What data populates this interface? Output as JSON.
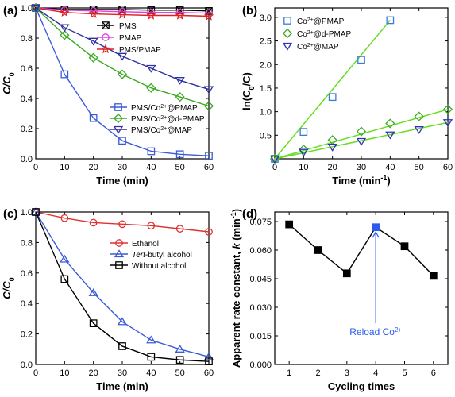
{
  "chart_data": [
    {
      "panel": "(a)",
      "type": "line",
      "xlabel": "Time (min)",
      "ylabel": "C/C0",
      "ylabel_main": "C/C",
      "ylabel_sub": "0",
      "xlim": [
        0,
        60
      ],
      "ylim": [
        0,
        1.0
      ],
      "xticks": [
        "0",
        "10",
        "20",
        "30",
        "40",
        "50",
        "60"
      ],
      "yticks": [
        "0.0",
        "0.2",
        "0.4",
        "0.6",
        "0.8",
        "1.0"
      ],
      "grid": false,
      "series": [
        {
          "name": "PMS",
          "label_parts": [
            "PMS"
          ],
          "color": "#000000",
          "marker": "xsquare",
          "x": [
            0,
            10,
            20,
            30,
            40,
            50,
            60
          ],
          "values": [
            1.0,
            0.99,
            0.99,
            0.99,
            0.985,
            0.985,
            0.98
          ]
        },
        {
          "name": "PMAP",
          "label_parts": [
            "PMAP"
          ],
          "color": "#e040e0",
          "marker": "circle",
          "x": [
            0,
            10,
            20,
            30,
            40,
            50,
            60
          ],
          "values": [
            1.0,
            0.985,
            0.98,
            0.975,
            0.97,
            0.97,
            0.965
          ]
        },
        {
          "name": "PMS/PMAP",
          "label_parts": [
            "PMS/PMAP"
          ],
          "color": "#e02020",
          "marker": "star",
          "x": [
            0,
            10,
            20,
            30,
            40,
            50,
            60
          ],
          "values": [
            1.0,
            0.97,
            0.96,
            0.955,
            0.95,
            0.95,
            0.945
          ]
        },
        {
          "name": "PMS/Co2+@PMAP",
          "label_parts": [
            "PMS/Co",
            "2+",
            "@PMAP"
          ],
          "color": "#3a5ad8",
          "marker": "square",
          "x": [
            0,
            10,
            20,
            30,
            40,
            50,
            60
          ],
          "values": [
            1.0,
            0.56,
            0.27,
            0.12,
            0.05,
            0.03,
            0.02
          ]
        },
        {
          "name": "PMS/Co2+@d-PMAP",
          "label_parts": [
            "PMS/Co",
            "2+",
            "@d-PMAP"
          ],
          "color": "#3aaa20",
          "marker": "diamond",
          "x": [
            0,
            10,
            20,
            30,
            40,
            50,
            60
          ],
          "values": [
            1.0,
            0.82,
            0.67,
            0.56,
            0.47,
            0.41,
            0.35
          ]
        },
        {
          "name": "PMS/Co2+@MAP",
          "label_parts": [
            "PMS/Co",
            "2+",
            "@MAP"
          ],
          "color": "#3030a0",
          "marker": "triangle-down",
          "x": [
            0,
            10,
            20,
            30,
            40,
            50,
            60
          ],
          "values": [
            1.0,
            0.87,
            0.78,
            0.68,
            0.6,
            0.52,
            0.46
          ]
        }
      ]
    },
    {
      "panel": "(b)",
      "type": "scatter",
      "xlabel": "Time (min-1)",
      "xlabel_main": "Time (min",
      "xlabel_sup": "-1",
      "xlabel_end": ")",
      "ylabel": "ln(C0/C)",
      "ylabel_parts": [
        "ln(C",
        "0",
        "/C)"
      ],
      "xlim": [
        0,
        60
      ],
      "ylim": [
        0,
        3.2
      ],
      "xticks": [
        "0",
        "10",
        "20",
        "30",
        "40",
        "50",
        "60"
      ],
      "yticks": [
        "0.5",
        "1.0",
        "1.5",
        "2.0",
        "2.5",
        "3.0"
      ],
      "grid": false,
      "fit_line_color": "#66dd22",
      "series": [
        {
          "name": "Co2+@PMAP",
          "label_parts": [
            "Co",
            "2+",
            "@PMAP"
          ],
          "color": "#3a7ad8",
          "marker": "square",
          "x": [
            0,
            10,
            20,
            30,
            40
          ],
          "values": [
            0.0,
            0.57,
            1.31,
            2.1,
            2.94
          ],
          "fit": [
            [
              0,
              0
            ],
            [
              40,
              2.94
            ]
          ]
        },
        {
          "name": "Co2+@d-PMAP",
          "label_parts": [
            "Co",
            "2+",
            "@d-PMAP"
          ],
          "color": "#3aaa20",
          "marker": "diamond",
          "x": [
            0,
            10,
            20,
            30,
            40,
            50,
            60
          ],
          "values": [
            0.0,
            0.2,
            0.4,
            0.58,
            0.75,
            0.9,
            1.05
          ],
          "fit": [
            [
              0,
              0
            ],
            [
              60,
              1.05
            ]
          ]
        },
        {
          "name": "Co2+@MAP",
          "label_parts": [
            "Co",
            "2+",
            "@MAP"
          ],
          "color": "#3030c0",
          "marker": "triangle-down",
          "x": [
            0,
            10,
            20,
            30,
            40,
            50,
            60
          ],
          "values": [
            0.0,
            0.14,
            0.25,
            0.37,
            0.51,
            0.62,
            0.77
          ],
          "fit": [
            [
              0,
              0
            ],
            [
              60,
              0.77
            ]
          ]
        }
      ]
    },
    {
      "panel": "(c)",
      "type": "line",
      "xlabel": "Time (min)",
      "ylabel": "C/C0",
      "ylabel_main": "C/C",
      "ylabel_sub": "0",
      "xlim": [
        0,
        60
      ],
      "ylim": [
        0,
        1.0
      ],
      "xticks": [
        "0",
        "10",
        "20",
        "30",
        "40",
        "50",
        "60"
      ],
      "yticks": [
        "0.0",
        "0.2",
        "0.4",
        "0.6",
        "0.8",
        "1.0"
      ],
      "grid": false,
      "series": [
        {
          "name": "Ethanol",
          "label_parts": [
            "Ethanol"
          ],
          "italic_part": "",
          "color": "#e03030",
          "marker": "circle",
          "x": [
            0,
            10,
            20,
            30,
            40,
            50,
            60
          ],
          "values": [
            1.0,
            0.96,
            0.93,
            0.92,
            0.91,
            0.89,
            0.87
          ]
        },
        {
          "name": "Tert-butyl alcohol",
          "label_parts": [
            "Tert",
            "-butyl alcohol"
          ],
          "italic_part": "Tert",
          "color": "#3a5ad8",
          "marker": "triangle-up",
          "x": [
            0,
            10,
            20,
            30,
            40,
            50,
            60
          ],
          "values": [
            1.0,
            0.69,
            0.47,
            0.28,
            0.16,
            0.1,
            0.05
          ]
        },
        {
          "name": "Without alcohol",
          "label_parts": [
            "Without alcohol"
          ],
          "italic_part": "",
          "color": "#000000",
          "marker": "square",
          "x": [
            0,
            10,
            20,
            30,
            40,
            50,
            60
          ],
          "values": [
            1.0,
            0.56,
            0.27,
            0.12,
            0.05,
            0.03,
            0.02
          ]
        }
      ]
    },
    {
      "panel": "(d)",
      "type": "line",
      "xlabel": "Cycling times",
      "ylabel": "Apparent rate constant, k (min-1)",
      "ylabel_parts": [
        "Apparent rate constant, ",
        "k",
        " (min",
        "-1",
        ")"
      ],
      "xlim": [
        0.5,
        6.5
      ],
      "ylim": [
        0.0,
        0.08
      ],
      "xticks": [
        "1",
        "2",
        "3",
        "4",
        "5",
        "6"
      ],
      "yticks": [
        "0.000",
        "0.015",
        "0.030",
        "0.045",
        "0.060",
        "0.075"
      ],
      "grid": false,
      "series": [
        {
          "name": "",
          "color": "#000000",
          "marker": "square",
          "x": [
            1,
            2,
            3,
            4,
            5,
            6
          ],
          "values": [
            0.0735,
            0.06,
            0.0478,
            0.072,
            0.062,
            0.0465
          ],
          "highlight_index": 3,
          "highlight_color": "#2a5af0"
        }
      ],
      "annotation": {
        "text_main": "Reload Co",
        "text_sup": "2+",
        "color": "#2a5af0"
      }
    }
  ],
  "panel_labels": [
    "(a)",
    "(b)",
    "(c)",
    "(d)"
  ]
}
